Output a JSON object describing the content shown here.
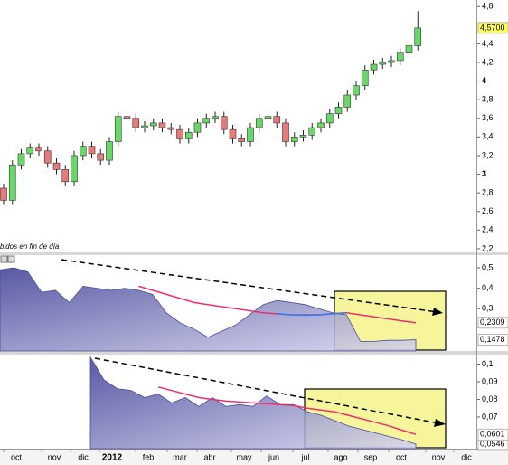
{
  "chart_data": [
    {
      "type": "candlestick",
      "caption": "bidos en fin de día",
      "open": [
        2.85,
        2.72,
        3.1,
        3.22,
        3.28,
        3.25,
        3.12,
        3.05,
        2.92,
        3.2,
        3.3,
        3.22,
        3.15,
        3.35,
        3.62,
        3.6,
        3.5,
        3.52,
        3.55,
        3.5,
        3.48,
        3.38,
        3.45,
        3.55,
        3.6,
        3.62,
        3.48,
        3.38,
        3.35,
        3.5,
        3.6,
        3.62,
        3.55,
        3.35,
        3.4,
        3.42,
        3.5,
        3.55,
        3.65,
        3.72,
        3.85,
        3.95,
        4.12,
        4.18,
        4.2,
        4.22,
        4.3,
        4.38
      ],
      "high": [
        2.9,
        3.15,
        3.27,
        3.33,
        3.33,
        3.3,
        3.17,
        3.1,
        3.25,
        3.35,
        3.35,
        3.27,
        3.4,
        3.67,
        3.67,
        3.65,
        3.57,
        3.6,
        3.6,
        3.55,
        3.53,
        3.5,
        3.6,
        3.65,
        3.67,
        3.67,
        3.53,
        3.43,
        3.55,
        3.65,
        3.67,
        3.67,
        3.6,
        3.45,
        3.47,
        3.55,
        3.6,
        3.7,
        3.77,
        3.9,
        4,
        4.17,
        4.23,
        4.25,
        4.27,
        4.35,
        4.43,
        4.75
      ],
      "low": [
        2.67,
        2.67,
        3.05,
        3.17,
        3.2,
        3.07,
        3,
        2.87,
        2.87,
        3.15,
        3.17,
        3.1,
        3.1,
        3.3,
        3.55,
        3.45,
        3.45,
        3.47,
        3.45,
        3.43,
        3.33,
        3.33,
        3.4,
        3.5,
        3.55,
        3.43,
        3.33,
        3.3,
        3.3,
        3.45,
        3.55,
        3.5,
        3.3,
        3.3,
        3.35,
        3.37,
        3.45,
        3.5,
        3.6,
        3.67,
        3.8,
        3.9,
        4.07,
        4.13,
        4.15,
        4.17,
        4.25,
        4.33
      ],
      "close": [
        2.72,
        3.1,
        3.22,
        3.28,
        3.25,
        3.12,
        3.05,
        2.92,
        3.2,
        3.3,
        3.22,
        3.15,
        3.35,
        3.62,
        3.6,
        3.5,
        3.52,
        3.55,
        3.5,
        3.48,
        3.38,
        3.45,
        3.55,
        3.6,
        3.62,
        3.48,
        3.38,
        3.35,
        3.5,
        3.6,
        3.62,
        3.55,
        3.35,
        3.4,
        3.42,
        3.5,
        3.55,
        3.65,
        3.72,
        3.85,
        3.95,
        4.12,
        4.18,
        4.2,
        4.22,
        4.3,
        4.38,
        4.57
      ],
      "up_color": "#66d966",
      "down_color": "#e87a7a",
      "last_label": "4,5700",
      "ylim": [
        2.17,
        4.87
      ],
      "yticks": [
        {
          "value": 4.8,
          "label": "4,8"
        },
        {
          "value": 4.4,
          "label": "4,4"
        },
        {
          "value": 4.2,
          "label": "4,2"
        },
        4,
        {
          "value": 3.8,
          "label": "3,8"
        },
        {
          "value": 3.6,
          "label": "3,6"
        },
        {
          "value": 3.4,
          "label": "3,4"
        },
        {
          "value": 3.2,
          "label": "3,2"
        },
        3,
        {
          "value": 2.8,
          "label": "2,8"
        },
        {
          "value": 2.6,
          "label": "2,6"
        },
        {
          "value": 2.4,
          "label": "2,4"
        },
        {
          "value": 2.2,
          "label": "2,2"
        }
      ],
      "x_labels": [
        "oct",
        "nov",
        "dic",
        "2012",
        "feb",
        "mar",
        "abr",
        "may",
        "jun",
        "jul",
        "ago",
        "sep",
        "oct",
        "nov",
        "dic"
      ]
    },
    {
      "type": "area",
      "series": [
        {
          "kind": "area",
          "color": "#4a4a9e",
          "last_label": "0,1478",
          "values": [
            0.49,
            0.5,
            0.48,
            0.38,
            0.39,
            0.33,
            0.41,
            0.4,
            0.39,
            0.4,
            0.39,
            0.37,
            0.28,
            0.23,
            0.2,
            0.16,
            0.19,
            0.22,
            0.27,
            0.32,
            0.34,
            0.33,
            0.32,
            0.3,
            0.28,
            0.27,
            0.14,
            0.14,
            0.145,
            0.145,
            0.1478
          ]
        },
        {
          "kind": "line",
          "color": "#e8306a",
          "last_label": "0,2309",
          "values": [
            null,
            null,
            null,
            null,
            null,
            null,
            null,
            null,
            null,
            null,
            0.41,
            0.39,
            0.37,
            0.35,
            0.33,
            0.32,
            0.31,
            0.3,
            0.29,
            0.28,
            0.275,
            0.27,
            0.27,
            0.27,
            0.275,
            0.28,
            0.27,
            0.26,
            0.25,
            0.24,
            0.2309
          ]
        },
        {
          "kind": "line",
          "color": "#2f7df0",
          "values": [
            null,
            null,
            null,
            null,
            null,
            null,
            null,
            null,
            null,
            null,
            null,
            null,
            null,
            null,
            null,
            null,
            null,
            null,
            null,
            null,
            0.275,
            0.27,
            0.268,
            0.27,
            0.275,
            0.28,
            null,
            null,
            null,
            null,
            null
          ]
        }
      ],
      "ylim": [
        0.093,
        0.562
      ],
      "yticks": [
        {
          "value": 0.5,
          "label": "0,5"
        },
        {
          "value": 0.4,
          "label": "0,4"
        },
        {
          "value": 0.3,
          "label": "0,3"
        }
      ]
    },
    {
      "type": "area",
      "series": [
        {
          "kind": "area",
          "color": "#4a4a9e",
          "last_label": "0,0546",
          "values": [
            0.104,
            0.091,
            0.086,
            0.085,
            0.081,
            0.083,
            0.078,
            0.081,
            0.076,
            0.081,
            0.076,
            0.077,
            0.076,
            0.082,
            0.077,
            0.077,
            0.073,
            0.071,
            0.068,
            0.065,
            0.063,
            0.061,
            0.059,
            0.057,
            0.0546
          ]
        },
        {
          "kind": "line",
          "color": "#e8306a",
          "last_label": "0,0601",
          "values": [
            null,
            null,
            null,
            null,
            null,
            0.087,
            0.085,
            0.083,
            0.081,
            0.08,
            0.079,
            0.0785,
            0.078,
            0.0775,
            0.077,
            0.0765,
            0.075,
            0.074,
            0.073,
            0.071,
            0.069,
            0.067,
            0.065,
            0.0625,
            0.0601
          ]
        }
      ],
      "ylim": [
        0.052,
        0.1054
      ],
      "yticks": [
        {
          "value": 0.1,
          "label": "0,1"
        },
        {
          "value": 0.09,
          "label": "0,09"
        },
        {
          "value": 0.08,
          "label": "0,08"
        },
        {
          "value": 0.07,
          "label": "0,07"
        }
      ]
    }
  ]
}
